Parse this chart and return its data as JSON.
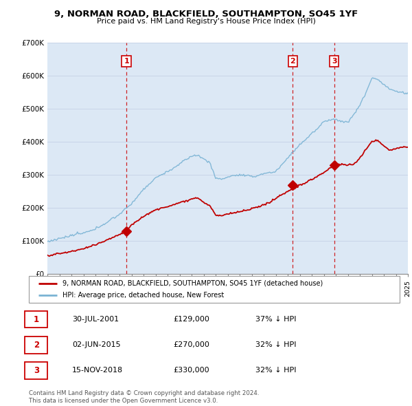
{
  "title": "9, NORMAN ROAD, BLACKFIELD, SOUTHAMPTON, SO45 1YF",
  "subtitle": "Price paid vs. HM Land Registry's House Price Index (HPI)",
  "ylim": [
    0,
    700000
  ],
  "yticks": [
    0,
    100000,
    200000,
    300000,
    400000,
    500000,
    600000,
    700000
  ],
  "ytick_labels": [
    "£0",
    "£100K",
    "£200K",
    "£300K",
    "£400K",
    "£500K",
    "£600K",
    "£700K"
  ],
  "hpi_color": "#7ab3d4",
  "price_color": "#c00000",
  "vline_color": "#cc0000",
  "grid_color": "#c8d4e8",
  "bg_color": "#dce8f5",
  "legend_label_price": "9, NORMAN ROAD, BLACKFIELD, SOUTHAMPTON, SO45 1YF (detached house)",
  "legend_label_hpi": "HPI: Average price, detached house, New Forest",
  "purchase_dates_year": [
    2001.577,
    2015.416,
    2018.872
  ],
  "purchase_prices": [
    129000,
    270000,
    330000
  ],
  "purchase_labels": [
    "1",
    "2",
    "3"
  ],
  "table_rows": [
    [
      "1",
      "30-JUL-2001",
      "£129,000",
      "37% ↓ HPI"
    ],
    [
      "2",
      "02-JUN-2015",
      "£270,000",
      "32% ↓ HPI"
    ],
    [
      "3",
      "15-NOV-2018",
      "£330,000",
      "32% ↓ HPI"
    ]
  ],
  "footer": "Contains HM Land Registry data © Crown copyright and database right 2024.\nThis data is licensed under the Open Government Licence v3.0.",
  "x_start_year": 1995,
  "x_end_year": 2025
}
